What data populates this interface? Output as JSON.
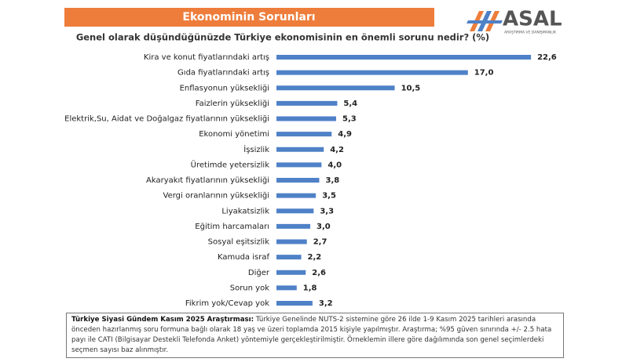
{
  "header": {
    "logo": "ASAL",
    "logo_tagline": "ARAŞTIRMA VE DANIŞMANLIK"
  },
  "chart_data": {
    "type": "bar",
    "orientation": "horizontal",
    "title": "Ekonominin Sorunları",
    "subtitle": "Genel olarak düşündüğünüzde  Türkiye ekonomisinin  en önemli sorunu nedir? (%)",
    "categories": [
      "Kira ve konut fiyatlarındaki artış",
      "Gıda fiyatlarındaki artış",
      "Enflasyonun yüksekliği",
      "Faizlerin yüksekliği",
      "Elektrik,Su, Aidat ve Doğalgaz fiyatlarının yüksekliği",
      "Ekonomi yönetimi",
      "İşsizlik",
      "Üretimde yetersizlik",
      "Akaryakıt fiyatlarının yüksekliği",
      "Vergi oranlarının yüksekliği",
      "Liyakatsizlik",
      "Eğitim harcamaları",
      "Sosyal eşitsizlik",
      "Kamuda israf",
      "Diğer",
      "Sorun yok",
      "Fikrim yok/Cevap yok"
    ],
    "values": [
      22.6,
      17.0,
      10.5,
      5.4,
      5.3,
      4.9,
      4.2,
      4.0,
      3.8,
      3.5,
      3.3,
      3.0,
      2.7,
      2.2,
      2.6,
      1.8,
      3.2
    ],
    "value_labels": [
      "22,6",
      "17,0",
      "10,5",
      "5,4",
      "5,3",
      "4,9",
      "4,2",
      "4,0",
      "3,8",
      "3,5",
      "3,3",
      "3,0",
      "2,7",
      "2,2",
      "2,6",
      "1,8",
      "3,2"
    ],
    "color": "#4f81c7"
  },
  "note": {
    "lead": "Türkiye Siyasi Gündem Kasım 2025 Araştırması:",
    "text": " Türkiye Genelinde  NUTS-2 sistemine göre 26 ilde 1-9 Kasım 2025 tarihleri arasında önceden hazırlanmış soru formuna bağlı olarak 18 yaş ve üzeri toplamda 2015 kişiyle yapılmıştır. Araştırma; %95 güven sınırında +/- 2.5 hata payı ile CATI (Bilgisayar Destekli Telefonda Anket) yöntemiyle gerçekleştirilmiştir. Örneklemin illere göre dağılımında son genel seçimlerdeki seçmen sayısı baz alınmıştır."
  }
}
